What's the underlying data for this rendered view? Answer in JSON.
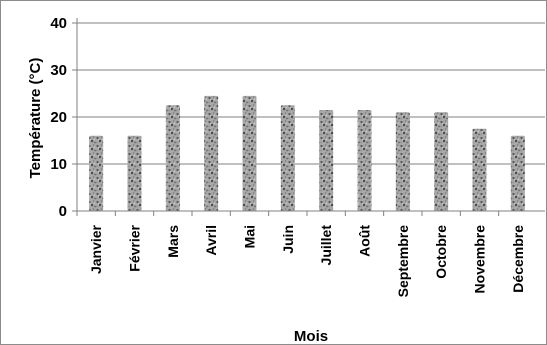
{
  "chart_data": {
    "type": "bar",
    "title": "",
    "xlabel": "Mois",
    "ylabel": "Température (°C)",
    "ylim": [
      0,
      40
    ],
    "yticks": [
      0,
      10,
      20,
      30,
      40
    ],
    "grid": true,
    "legend": "none",
    "categories": [
      "Janvier",
      "Février",
      "Mars",
      "Avril",
      "Mai",
      "Juin",
      "Juillet",
      "Août",
      "Septembre",
      "Octobre",
      "Novembre",
      "Décembre"
    ],
    "values": [
      16,
      16,
      22.5,
      24.5,
      24.5,
      22.5,
      21.5,
      21.5,
      21,
      21,
      17.5,
      16
    ],
    "colors": {
      "bar": "#9a9a9a",
      "bar_speckle": "#4a4a4a",
      "grid": "#808080",
      "axis": "#808080"
    }
  }
}
